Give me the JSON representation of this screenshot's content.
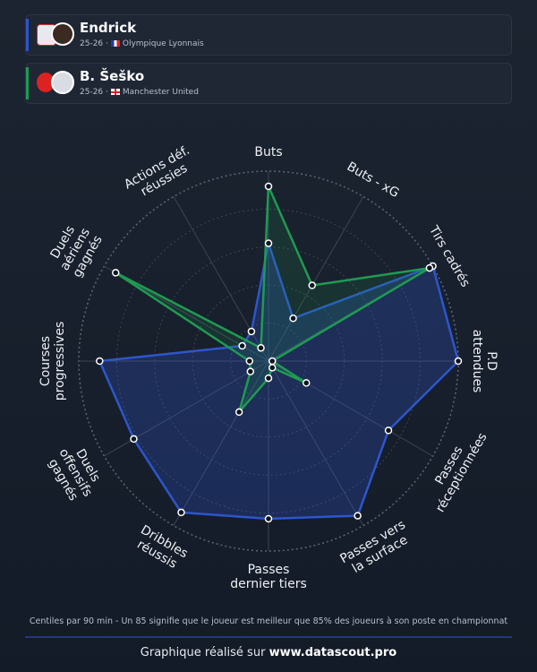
{
  "players": [
    {
      "name": "Endrick",
      "season": "25-26 ·",
      "club": "Olympique Lyonnais"
    },
    {
      "name": "B. Šeško",
      "season": "25-26 ·",
      "club": "Manchester United"
    }
  ],
  "chart_data": {
    "type": "radar",
    "categories": [
      [
        "Buts"
      ],
      [
        "Buts - xG"
      ],
      [
        "Tirs cadrés"
      ],
      [
        "P.D",
        "attendues"
      ],
      [
        "Passes",
        "réceptionnées"
      ],
      [
        "Passes vers",
        "la surface"
      ],
      [
        "Passes",
        "dernier tiers"
      ],
      [
        "Dribbles",
        "réussis"
      ],
      [
        "Duels",
        "offensifs",
        "gagnés"
      ],
      [
        "Courses",
        "progressives"
      ],
      [
        "Duels",
        "aériens",
        "gagnés"
      ],
      [
        "Actions déf.",
        "réussies"
      ]
    ],
    "rlim": [
      0,
      100
    ],
    "rticks": [
      20,
      40,
      60,
      80,
      100
    ],
    "series": [
      {
        "name": "Endrick",
        "color": "#2d56cc",
        "values": [
          62,
          26,
          100,
          100,
          73,
          94,
          83,
          92,
          82,
          89,
          16,
          18
        ]
      },
      {
        "name": "B. Šeško",
        "color": "#1f9a52",
        "values": [
          92,
          46,
          98,
          2,
          23,
          4,
          9,
          31,
          11,
          10,
          93,
          8
        ]
      }
    ],
    "note": "Centiles par 90 min - Un 85 signifie que le joueur est meilleur que 85% des joueurs à son poste en championnat"
  },
  "footer": {
    "text": "Graphique réalisé sur",
    "site": "www.datascout.pro"
  }
}
